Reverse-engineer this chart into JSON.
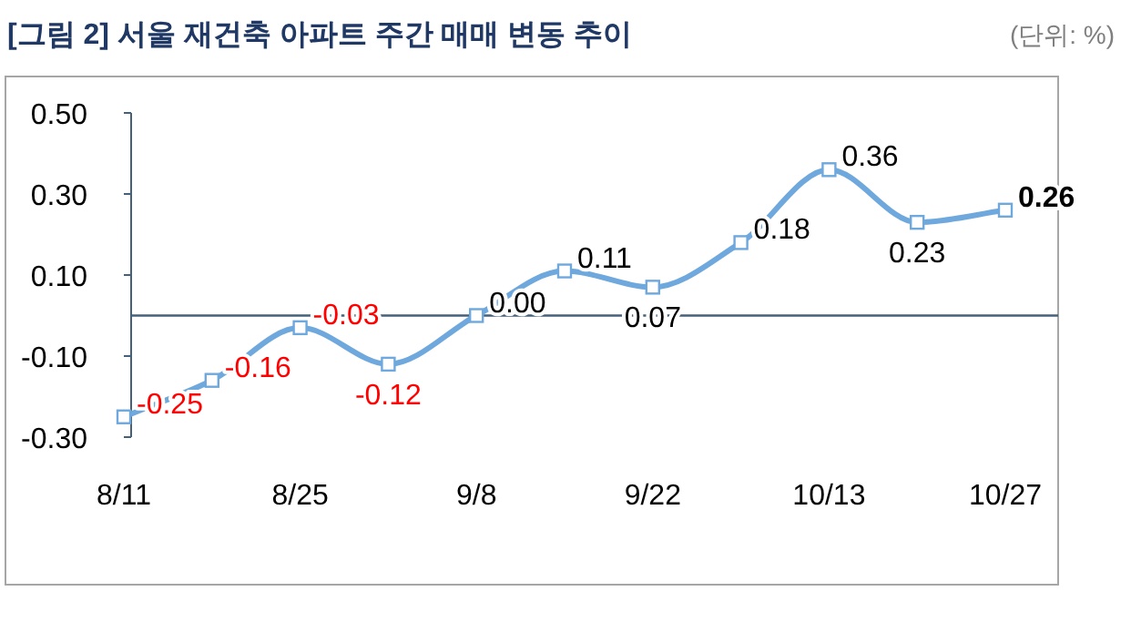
{
  "chart_data": {
    "type": "line",
    "title": "[그림 2] 서울 재건축 아파트 주간 매매 변동 추이",
    "subtitle": "(단위: %)",
    "categories": [
      "8/11",
      null,
      "8/25",
      null,
      "9/8",
      null,
      "9/22",
      null,
      "10/13",
      null,
      "10/27"
    ],
    "series": [
      {
        "color": "#6fa8dc",
        "values": [
          -0.25,
          -0.16,
          -0.03,
          -0.12,
          0.0,
          0.11,
          0.07,
          0.18,
          0.36,
          0.23,
          0.26
        ],
        "value_labels": [
          "-0.25",
          "-0.16",
          "-0.03",
          "-0.12",
          "0.00",
          "0.11",
          "0.07",
          "0.18",
          "0.36",
          "0.23",
          "**0.26**"
        ]
      }
    ],
    "ylim": [
      -0.3,
      0.5
    ],
    "yticks": [
      {
        "value": -0.3,
        "label": "-0.30"
      },
      {
        "value": -0.1,
        "label": "-0.10"
      },
      {
        "value": 0.1,
        "label": "0.10"
      },
      {
        "value": 0.3,
        "label": "0.30"
      },
      {
        "value": 0.5,
        "label": "0.50"
      }
    ],
    "ref_lines": [
      {
        "axis": "y",
        "value": 0,
        "color": "#44607a"
      }
    ],
    "marker": "square",
    "line_style": "solid"
  }
}
